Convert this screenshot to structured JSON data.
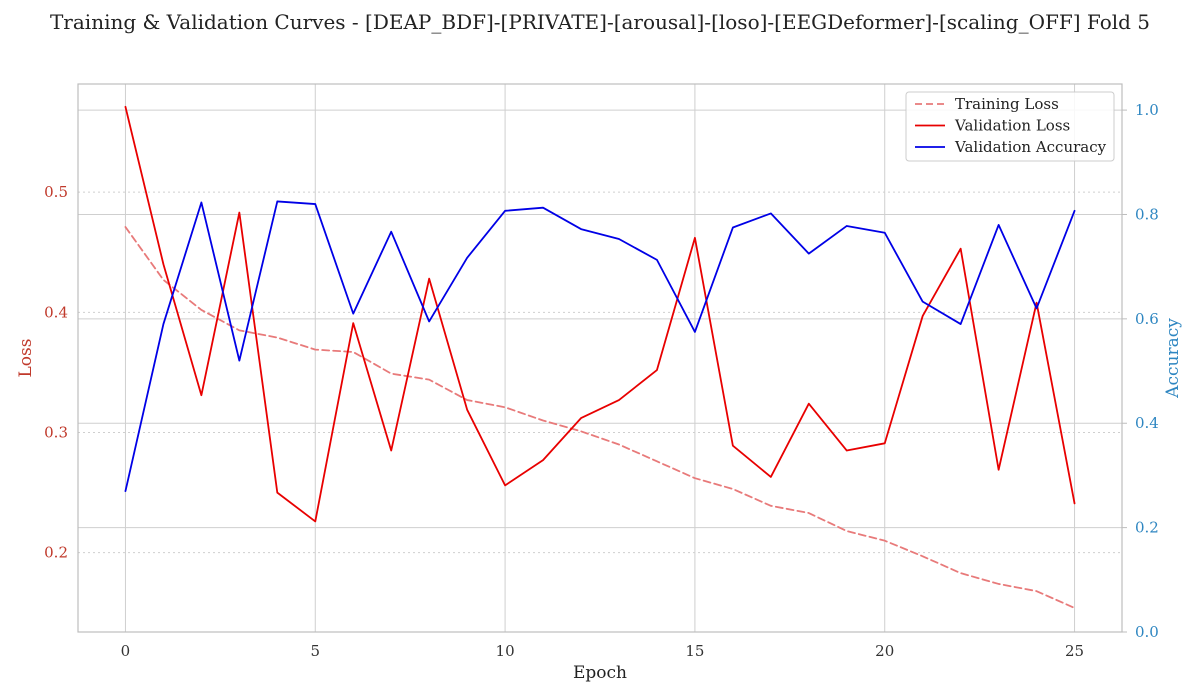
{
  "chart_data": {
    "type": "line",
    "title": "Training & Validation Curves - [DEAP_BDF]-[PRIVATE]-[arousal]-[loso]-[EEGDeformer]-[scaling_OFF] Fold 5",
    "xlabel": "Epoch",
    "ylabel_left": "Loss",
    "ylabel_right": "Accuracy",
    "xlim": [
      -1.25,
      26.25
    ],
    "ylim_left": [
      0.134,
      0.59
    ],
    "ylim_right": [
      0.0,
      1.05
    ],
    "x_ticks": [
      0,
      5,
      10,
      15,
      20,
      25
    ],
    "y_ticks_left": [
      0.2,
      0.3,
      0.4,
      0.5
    ],
    "y_ticks_right": [
      0.0,
      0.2,
      0.4,
      0.6,
      0.8,
      1.0
    ],
    "grid": true,
    "legend_position": "top-right",
    "x": [
      0,
      1,
      2,
      3,
      4,
      5,
      6,
      7,
      8,
      9,
      10,
      11,
      12,
      13,
      14,
      15,
      16,
      17,
      18,
      19,
      20,
      21,
      22,
      23,
      24,
      25
    ],
    "series": [
      {
        "name": "Training Loss",
        "axis": "left",
        "color": "#e87a7a",
        "style": "dashed",
        "values": [
          0.471,
          0.427,
          0.402,
          0.385,
          0.379,
          0.369,
          0.367,
          0.349,
          0.344,
          0.327,
          0.321,
          0.31,
          0.301,
          0.29,
          0.276,
          0.262,
          0.253,
          0.239,
          0.233,
          0.218,
          0.21,
          0.197,
          0.183,
          0.174,
          0.168,
          0.154
        ]
      },
      {
        "name": "Validation Loss",
        "axis": "left",
        "color": "#e80000",
        "style": "solid",
        "values": [
          0.571,
          0.44,
          0.331,
          0.483,
          0.25,
          0.226,
          0.391,
          0.285,
          0.428,
          0.319,
          0.256,
          0.277,
          0.312,
          0.327,
          0.352,
          0.462,
          0.289,
          0.263,
          0.324,
          0.285,
          0.291,
          0.397,
          0.453,
          0.269,
          0.408,
          0.241
        ]
      },
      {
        "name": "Validation Accuracy",
        "axis": "right",
        "color": "#0000e6",
        "style": "solid",
        "values": [
          0.27,
          0.59,
          0.823,
          0.52,
          0.825,
          0.82,
          0.61,
          0.767,
          0.595,
          0.717,
          0.807,
          0.813,
          0.772,
          0.753,
          0.713,
          0.575,
          0.775,
          0.802,
          0.725,
          0.778,
          0.765,
          0.633,
          0.59,
          0.78,
          0.62,
          0.807
        ]
      }
    ]
  },
  "colors": {
    "left_axis": "#c0392b",
    "right_axis": "#2e86c1",
    "grid": "#cfcfcf",
    "frame": "#bdbdbd"
  }
}
